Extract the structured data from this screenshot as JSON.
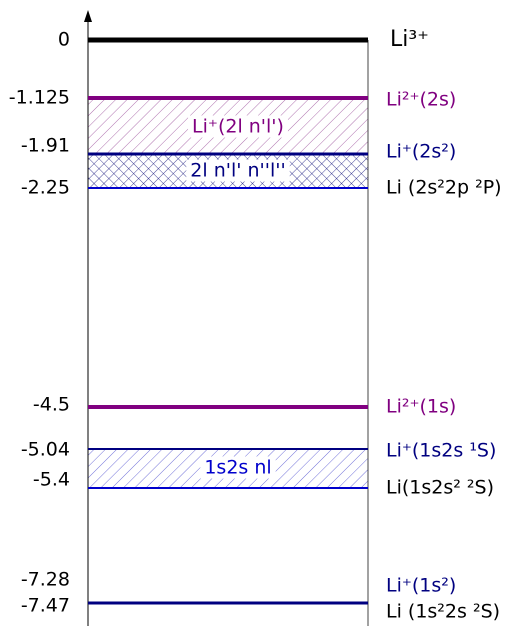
{
  "levels": [
    {
      "energy": 0,
      "label": "Li³⁺"
    },
    {
      "energy": -1.125,
      "label": "Li²⁺(2s)"
    },
    {
      "energy": -1.91,
      "label": "Li⁺(2s²)"
    },
    {
      "energy": -2.25,
      "label": "Li (2s²2p ²P)"
    },
    {
      "energy": -4.5,
      "label": "Li²⁺(1s)"
    },
    {
      "energy": -5.04,
      "label": "Li⁺(1s2s ¹S)"
    },
    {
      "energy": -5.4,
      "label": "Li(1s2s² ²S)"
    },
    {
      "energy": -7.28,
      "label": "Li⁺(1s²)"
    },
    {
      "energy": -7.47,
      "label": "Li (1s²2s ²S)"
    }
  ],
  "bands": [
    {
      "label": "Li⁺(2l n'l')"
    },
    {
      "label": "2l n'l' n''l''"
    },
    {
      "label": "1s2s nl"
    }
  ]
}
